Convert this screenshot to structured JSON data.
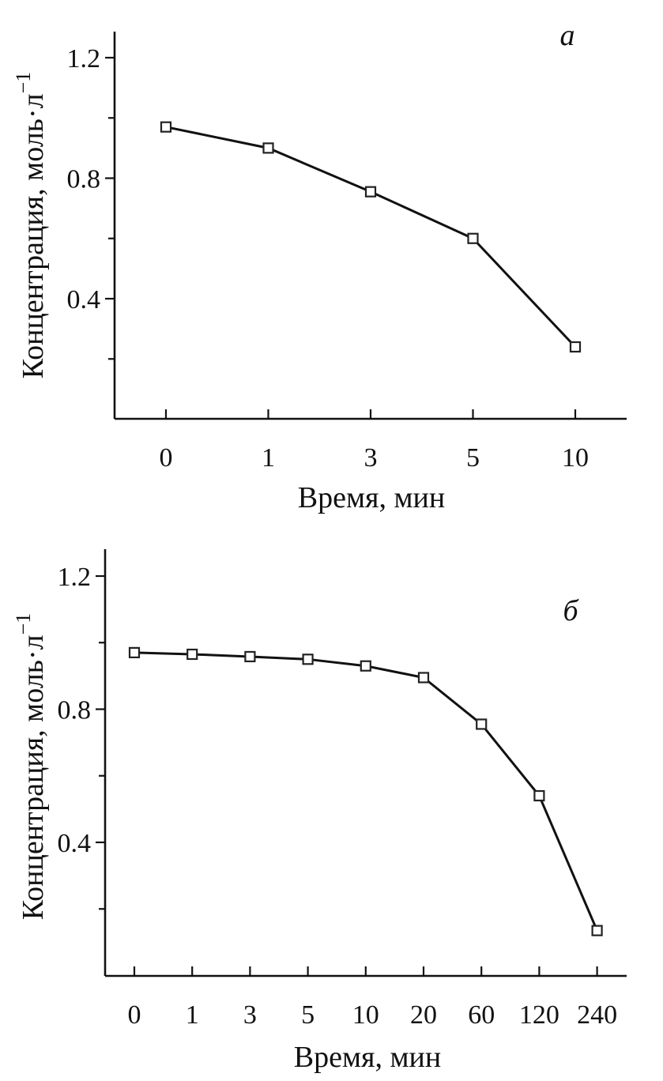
{
  "chart_data": [
    {
      "type": "line",
      "panel_label": "а",
      "xlabel": "Время, мин",
      "ylabel": "Концентрация, моль·л",
      "ylabel_superscript": "−1",
      "categories": [
        "0",
        "1",
        "3",
        "5",
        "10"
      ],
      "series": [
        {
          "values": [
            0.97,
            0.9,
            0.755,
            0.6,
            0.24
          ]
        }
      ],
      "ylim": [
        0.0,
        1.28
      ],
      "yticks": [
        0.4,
        0.8,
        1.2
      ],
      "yticks_minor": [
        0.2,
        0.6,
        1.0
      ],
      "ytick_labels": [
        "0.4",
        "0.8",
        "1.2"
      ],
      "grid": false,
      "marker": "open-square",
      "color": "#111111"
    },
    {
      "type": "line",
      "panel_label": "б",
      "xlabel": "Время, мин",
      "ylabel": "Концентрация, моль·л",
      "ylabel_superscript": "−1",
      "categories": [
        "0",
        "1",
        "3",
        "5",
        "10",
        "20",
        "60",
        "120",
        "240"
      ],
      "series": [
        {
          "values": [
            0.97,
            0.965,
            0.958,
            0.95,
            0.93,
            0.895,
            0.755,
            0.54,
            0.135
          ]
        }
      ],
      "ylim": [
        0.0,
        1.28
      ],
      "yticks": [
        0.4,
        0.8,
        1.2
      ],
      "yticks_minor": [
        0.2,
        0.6,
        1.0
      ],
      "ytick_labels": [
        "0.4",
        "0.8",
        "1.2"
      ],
      "grid": false,
      "marker": "open-square",
      "color": "#111111"
    }
  ]
}
